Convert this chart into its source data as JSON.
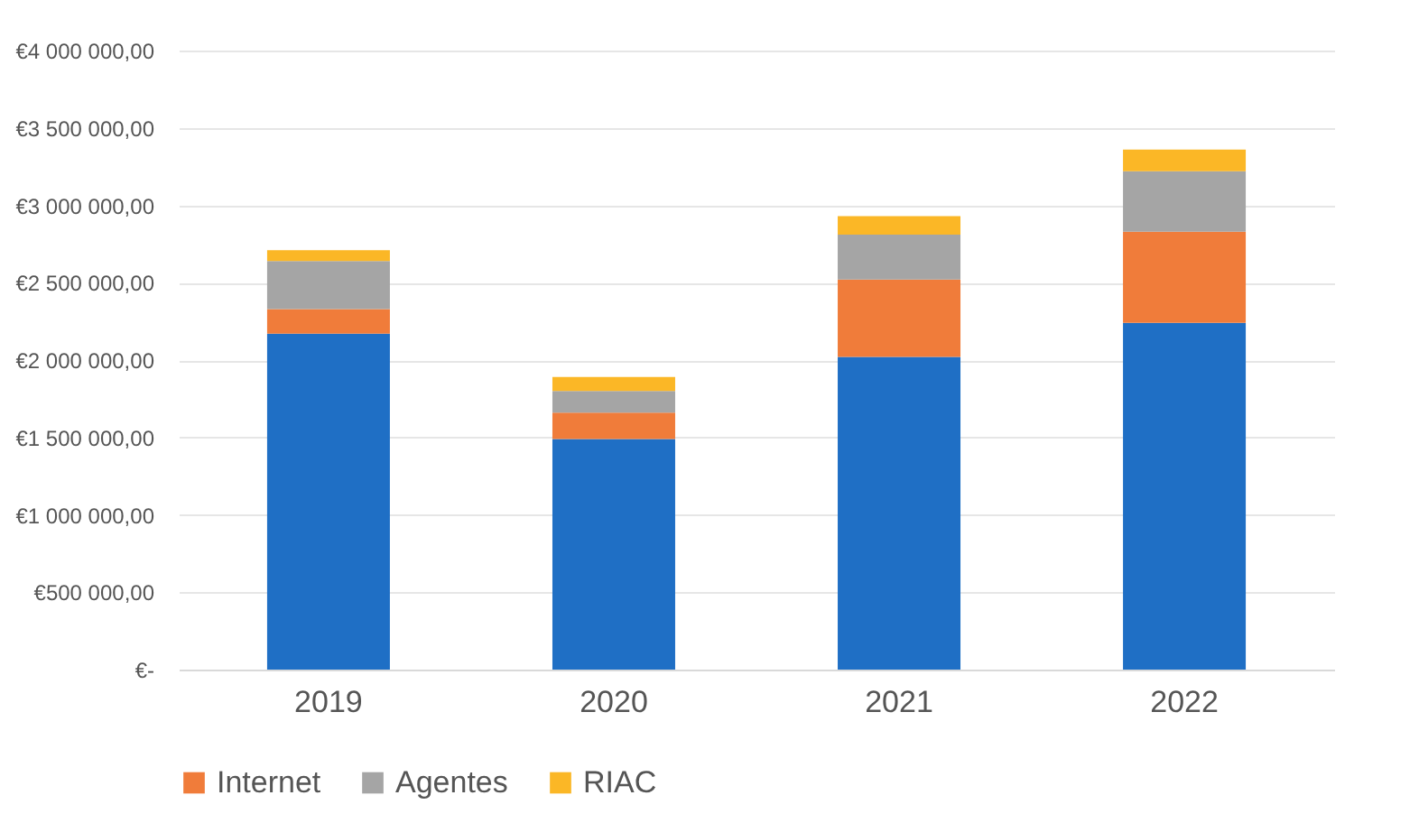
{
  "chart_data": {
    "type": "bar",
    "stacked": true,
    "categories": [
      "2019",
      "2020",
      "2021",
      "2022"
    ],
    "series": [
      {
        "color": "#1f6fc5",
        "values": [
          2170000,
          1490000,
          2020000,
          2240000
        ]
      },
      {
        "name": "Internet",
        "color": "#f07c3a",
        "values": [
          160000,
          170000,
          500000,
          590000
        ]
      },
      {
        "name": "Agentes",
        "color": "#a5a5a5",
        "values": [
          310000,
          140000,
          290000,
          390000
        ]
      },
      {
        "name": "RIAC",
        "color": "#fbb726",
        "values": [
          70000,
          90000,
          120000,
          140000
        ]
      }
    ],
    "ylim": [
      0,
      4000000
    ],
    "yticks": [
      {
        "value": 0,
        "label": "€-"
      },
      {
        "value": 500000,
        "label": "€500 000,00"
      },
      {
        "value": 1000000,
        "label": "€1 000 000,00"
      },
      {
        "value": 1500000,
        "label": "€1 500 000,00"
      },
      {
        "value": 2000000,
        "label": "€2 000 000,00"
      },
      {
        "value": 2500000,
        "label": "€2 500 000,00"
      },
      {
        "value": 3000000,
        "label": "€3 000 000,00"
      },
      {
        "value": 3500000,
        "label": "€3 500 000,00"
      },
      {
        "value": 4000000,
        "label": "€4 000 000,00"
      }
    ],
    "grid": "y",
    "legend": "bottom"
  }
}
